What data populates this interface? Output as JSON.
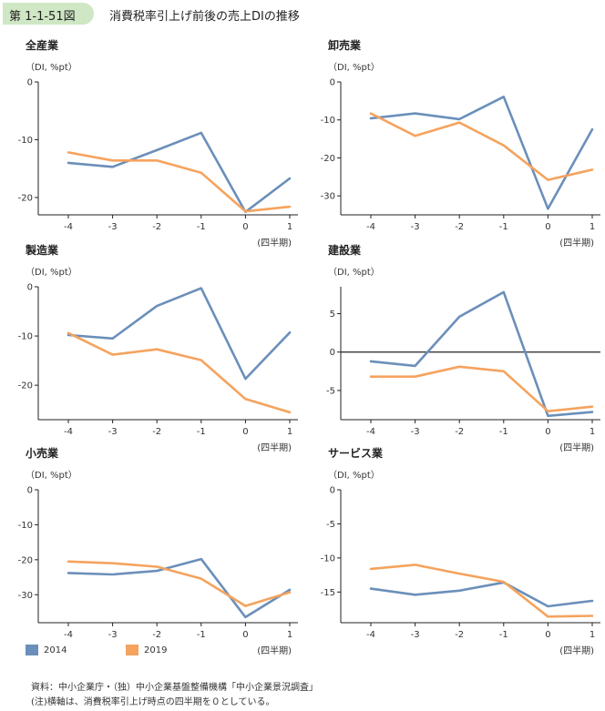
{
  "figure": {
    "number": "第 1-1-51図",
    "title": "消費税率引上げ前後の売上DIの推移"
  },
  "colors": {
    "s2014": "#6b8fba",
    "s2019": "#f5a35e",
    "axis": "#222222"
  },
  "chart_data": [
    {
      "type": "line",
      "title": "全産業",
      "unit": "（DI, %pt）",
      "quarter_label": "(四半期)",
      "categories": [
        "-4",
        "-3",
        "-2",
        "-1",
        "0",
        "1"
      ],
      "ylim": [
        -23,
        0
      ],
      "yticks": [
        0,
        -10,
        -20
      ],
      "zero_line": false,
      "series": [
        {
          "name": "2014",
          "values": [
            -14.0,
            -14.7,
            -11.8,
            -8.8,
            -22.5,
            -16.7
          ]
        },
        {
          "name": "2019",
          "values": [
            -12.2,
            -13.6,
            -13.6,
            -15.7,
            -22.4,
            -21.6
          ]
        }
      ]
    },
    {
      "type": "line",
      "title": "卸売業",
      "unit": "（DI, %pt）",
      "quarter_label": "(四半期)",
      "categories": [
        "-4",
        "-3",
        "-2",
        "-1",
        "0",
        "1"
      ],
      "ylim": [
        -35,
        0
      ],
      "yticks": [
        0,
        -10,
        -20,
        -30
      ],
      "zero_line": false,
      "series": [
        {
          "name": "2014",
          "values": [
            -9.6,
            -8.3,
            -9.8,
            -3.9,
            -33.4,
            -12.5
          ]
        },
        {
          "name": "2019",
          "values": [
            -8.3,
            -14.2,
            -10.7,
            -16.7,
            -25.8,
            -23.1
          ]
        }
      ]
    },
    {
      "type": "line",
      "title": "製造業",
      "unit": "（DI, %pt）",
      "quarter_label": "(四半期)",
      "categories": [
        "-4",
        "-3",
        "-2",
        "-1",
        "0",
        "1"
      ],
      "ylim": [
        -27,
        0
      ],
      "yticks": [
        0,
        -10,
        -20
      ],
      "zero_line": false,
      "series": [
        {
          "name": "2014",
          "values": [
            -9.8,
            -10.5,
            -3.9,
            -0.3,
            -18.7,
            -9.3
          ]
        },
        {
          "name": "2019",
          "values": [
            -9.4,
            -13.8,
            -12.7,
            -14.9,
            -22.8,
            -25.5
          ]
        }
      ]
    },
    {
      "type": "line",
      "title": "建設業",
      "unit": "（DI, %pt）",
      "quarter_label": "(四半期)",
      "categories": [
        "-4",
        "-3",
        "-2",
        "-1",
        "0",
        "1"
      ],
      "ylim": [
        -8.8,
        8.5
      ],
      "yticks": [
        5,
        0,
        -5
      ],
      "zero_line": true,
      "series": [
        {
          "name": "2014",
          "values": [
            -1.2,
            -1.8,
            4.6,
            7.8,
            -8.3,
            -7.8
          ]
        },
        {
          "name": "2019",
          "values": [
            -3.2,
            -3.2,
            -1.9,
            -2.5,
            -7.7,
            -7.1
          ]
        }
      ]
    },
    {
      "type": "line",
      "title": "小売業",
      "unit": "（DI, %pt）",
      "quarter_label": "(四半期)",
      "categories": [
        "-4",
        "-3",
        "-2",
        "-1",
        "0",
        "1"
      ],
      "ylim": [
        -38,
        0
      ],
      "yticks": [
        0,
        -10,
        -20,
        -30
      ],
      "zero_line": false,
      "series": [
        {
          "name": "2014",
          "values": [
            -23.8,
            -24.2,
            -23.2,
            -19.8,
            -36.4,
            -28.6
          ]
        },
        {
          "name": "2019",
          "values": [
            -20.5,
            -21.0,
            -22.0,
            -25.4,
            -33.2,
            -29.3
          ]
        }
      ]
    },
    {
      "type": "line",
      "title": "サービス業",
      "unit": "（DI, %pt）",
      "quarter_label": "(四半期)",
      "categories": [
        "-4",
        "-3",
        "-2",
        "-1",
        "0",
        "1"
      ],
      "ylim": [
        -19.5,
        0
      ],
      "yticks": [
        0,
        -5,
        -10,
        -15
      ],
      "zero_line": false,
      "series": [
        {
          "name": "2014",
          "values": [
            -14.5,
            -15.4,
            -14.8,
            -13.6,
            -17.1,
            -16.3
          ]
        },
        {
          "name": "2019",
          "values": [
            -11.6,
            -11.0,
            -12.3,
            -13.5,
            -18.6,
            -18.5
          ]
        }
      ]
    }
  ],
  "legend": [
    {
      "label": "2014"
    },
    {
      "label": "2019"
    }
  ],
  "notes": {
    "source": "資料：中小企業庁・（独）中小企業基盤整備機構「中小企業景況調査」",
    "note": "(注)横軸は、消費税率引上げ時点の四半期を０としている。"
  }
}
